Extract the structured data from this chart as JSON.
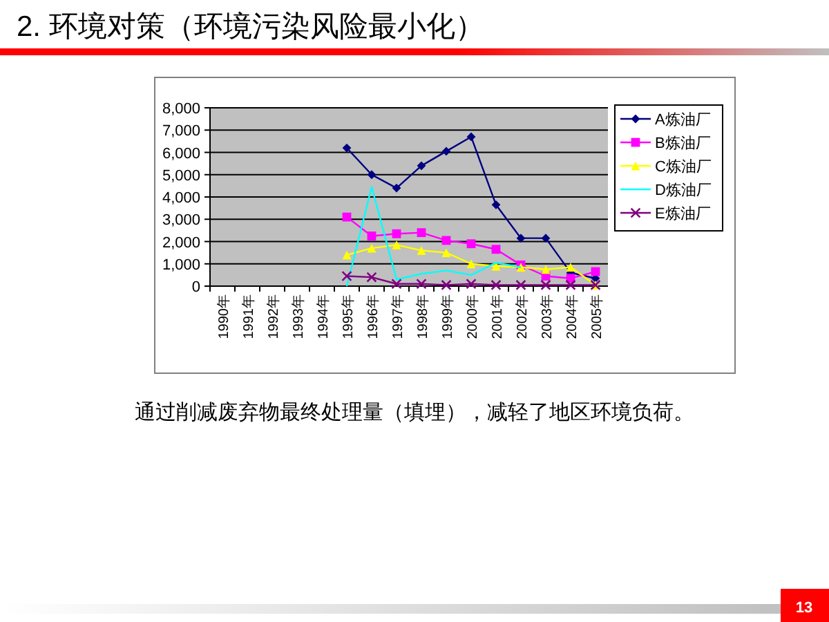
{
  "chart_data": {
    "type": "line",
    "title": "2. 环境对策（环境污染风险最小化）",
    "annotations": [
      "通过削减废弃物最终处理量（填埋），减轻了地区环境负荷。",
      "13"
    ],
    "categories": [
      "1990年",
      "1991年",
      "1992年",
      "1993年",
      "1994年",
      "1995年",
      "1996年",
      "1997年",
      "1998年",
      "1999年",
      "2000年",
      "2001年",
      "2002年",
      "2003年",
      "2004年",
      "2005年"
    ],
    "series": [
      {
        "name": "A炼油厂",
        "color": "#000080",
        "marker": "diamond",
        "values": [
          null,
          null,
          null,
          null,
          null,
          6200,
          5000,
          4400,
          5400,
          6050,
          6700,
          3650,
          2150,
          2150,
          600,
          350
        ]
      },
      {
        "name": "B炼油厂",
        "color": "#ff00ff",
        "marker": "square",
        "values": [
          null,
          null,
          null,
          null,
          null,
          3100,
          2250,
          2350,
          2400,
          2050,
          1900,
          1650,
          950,
          450,
          350,
          650
        ]
      },
      {
        "name": "C炼油厂",
        "color": "#ffff00",
        "marker": "triangle",
        "values": [
          null,
          null,
          null,
          null,
          null,
          1400,
          1700,
          1850,
          1600,
          1500,
          1000,
          900,
          850,
          750,
          850,
          50
        ]
      },
      {
        "name": "D炼油厂",
        "color": "#00ffff",
        "marker": "none",
        "values": [
          null,
          null,
          null,
          null,
          null,
          0,
          4450,
          300,
          550,
          700,
          500,
          1050,
          850,
          null,
          null,
          null
        ]
      },
      {
        "name": "E炼油厂",
        "color": "#800080",
        "marker": "cross",
        "values": [
          null,
          null,
          null,
          null,
          null,
          450,
          400,
          100,
          100,
          50,
          100,
          50,
          50,
          50,
          50,
          50
        ]
      }
    ],
    "ylim": [
      0,
      8000
    ],
    "yticks": [
      0,
      {
        "value": 1000,
        "label": "1,000"
      },
      {
        "value": 2000,
        "label": "2,000"
      },
      {
        "value": 3000,
        "label": "3,000"
      },
      {
        "value": 4000,
        "label": "4,000"
      },
      {
        "value": 5000,
        "label": "5,000"
      },
      {
        "value": 6000,
        "label": "6,000"
      },
      {
        "value": 7000,
        "label": "7,000"
      },
      {
        "value": 8000,
        "label": "8,000"
      }
    ],
    "grid": "y",
    "legend": "right"
  }
}
